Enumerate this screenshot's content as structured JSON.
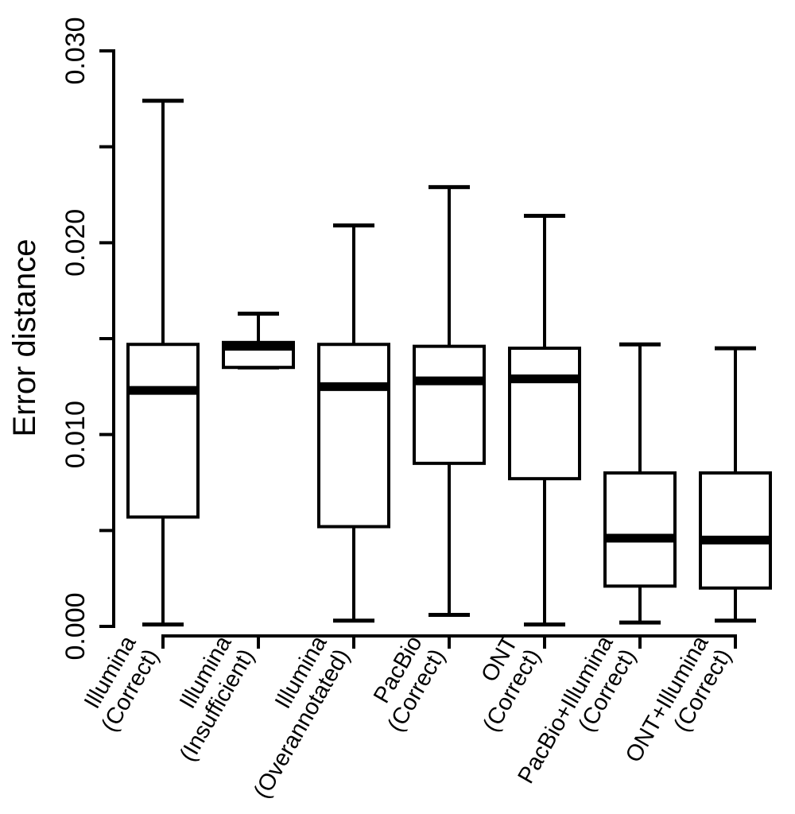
{
  "chart_data": {
    "type": "box",
    "title": "",
    "xlabel": "",
    "ylabel": "Error distance",
    "ylim": [
      0.0,
      0.03
    ],
    "yticks": [
      "0.000",
      "0.010",
      "0.020",
      "0.030"
    ],
    "categories": [
      [
        "Illumina",
        "(Correct)"
      ],
      [
        "Illumina",
        "(Insufficient)"
      ],
      [
        "Illumina",
        "(Overannotated)"
      ],
      [
        "PacBio",
        "(Correct)"
      ],
      [
        "ONT",
        "(Correct)"
      ],
      [
        "PacBio+Illumina",
        "(Correct)"
      ],
      [
        "ONT+Illumina",
        "(Correct)"
      ]
    ],
    "boxes": [
      {
        "min": 0.0001,
        "q1": 0.0057,
        "median": 0.0123,
        "q3": 0.0147,
        "max": 0.0274
      },
      {
        "min": 0.0135,
        "q1": 0.0135,
        "median": 0.0146,
        "q3": 0.0148,
        "max": 0.0163
      },
      {
        "min": 0.0003,
        "q1": 0.0052,
        "median": 0.0125,
        "q3": 0.0147,
        "max": 0.0209
      },
      {
        "min": 0.0006,
        "q1": 0.0085,
        "median": 0.0128,
        "q3": 0.0146,
        "max": 0.0229
      },
      {
        "min": 0.0001,
        "q1": 0.0077,
        "median": 0.0129,
        "q3": 0.0145,
        "max": 0.0214
      },
      {
        "min": 0.0002,
        "q1": 0.0021,
        "median": 0.0046,
        "q3": 0.008,
        "max": 0.0147
      },
      {
        "min": 0.0003,
        "q1": 0.002,
        "median": 0.0045,
        "q3": 0.008,
        "max": 0.0145
      }
    ],
    "grid": false,
    "legend": "none"
  }
}
